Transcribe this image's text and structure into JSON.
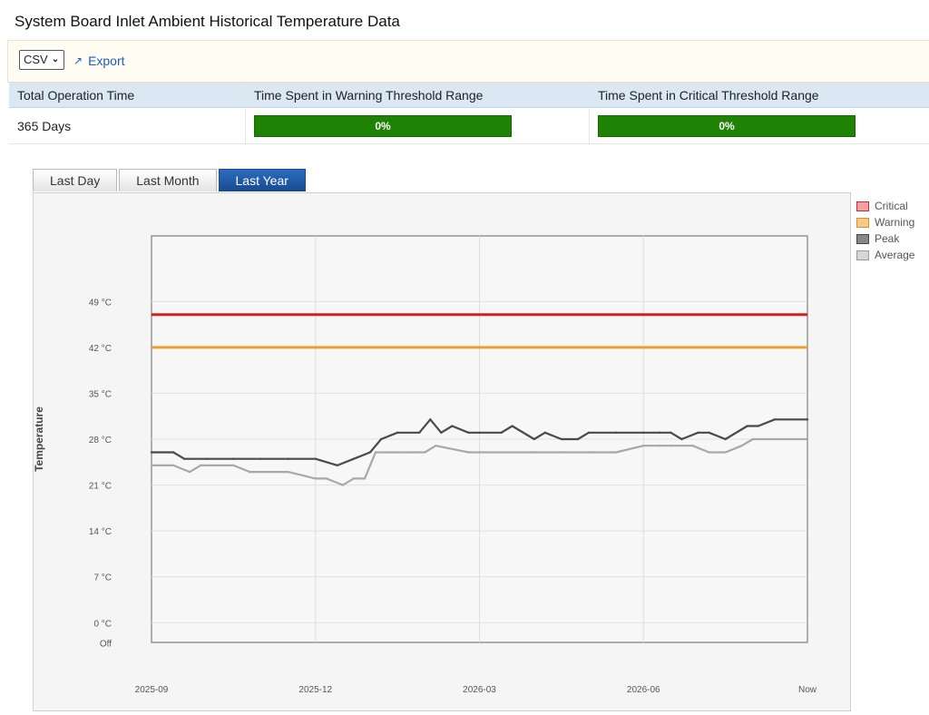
{
  "page_title": "System Board Inlet Ambient Historical Temperature Data",
  "toolbar": {
    "format_value": "CSV",
    "export_label": "Export"
  },
  "stats": {
    "headers": [
      "Total Operation Time",
      "Time Spent in Warning Threshold Range",
      "Time Spent in Critical Threshold Range"
    ],
    "operation_time": "365 Days",
    "warning_pct": "0%",
    "critical_pct": "0%"
  },
  "tabs": [
    {
      "label": "Last Day",
      "active": false
    },
    {
      "label": "Last Month",
      "active": false
    },
    {
      "label": "Last Year",
      "active": true
    }
  ],
  "legend": [
    {
      "label": "Critical",
      "color": "#f4a0a0"
    },
    {
      "label": "Warning",
      "color": "#f9c98a"
    },
    {
      "label": "Peak",
      "color": "#888888"
    },
    {
      "label": "Average",
      "color": "#d6d6d6"
    }
  ],
  "colors": {
    "critical": "#d02020",
    "warning": "#e8a030",
    "peak": "#4a4a4a",
    "average": "#a8a8a8",
    "bar_green": "#1e8204",
    "tab_active": "#1f59a8"
  },
  "chart_data": {
    "type": "line",
    "ylabel": "Temperature",
    "y_ticks": [
      "0 °C",
      "7 °C",
      "14 °C",
      "21 °C",
      "28 °C",
      "35 °C",
      "42 °C",
      "49 °C"
    ],
    "y_tick_values": [
      0,
      7,
      14,
      21,
      28,
      35,
      42,
      49
    ],
    "y_off_label": "Off",
    "ylim": [
      -3,
      59
    ],
    "x_tick_labels": [
      "2025-09",
      "2025-12",
      "2026-03",
      "2026-06",
      "Now"
    ],
    "xlim": [
      0,
      12
    ],
    "critical_threshold": 47,
    "warning_threshold": 42,
    "series": [
      {
        "name": "Peak",
        "x": [
          0,
          0.4,
          0.6,
          1.0,
          1.5,
          2.0,
          2.5,
          3.0,
          3.4,
          3.7,
          4.0,
          4.2,
          4.5,
          4.9,
          5.1,
          5.3,
          5.5,
          5.8,
          6.0,
          6.4,
          6.6,
          7.0,
          7.2,
          7.5,
          7.8,
          8.0,
          8.5,
          9.0,
          9.3,
          9.5,
          9.7,
          10.0,
          10.2,
          10.5,
          10.9,
          11.1,
          11.4,
          12.0
        ],
        "values": [
          26,
          26,
          25,
          25,
          25,
          25,
          25,
          25,
          24,
          25,
          26,
          28,
          29,
          29,
          31,
          29,
          30,
          29,
          29,
          29,
          30,
          28,
          29,
          28,
          28,
          29,
          29,
          29,
          29,
          29,
          28,
          29,
          29,
          28,
          30,
          30,
          31,
          31
        ]
      },
      {
        "name": "Average",
        "x": [
          0,
          0.4,
          0.7,
          0.9,
          1.5,
          1.8,
          2.5,
          3.0,
          3.2,
          3.5,
          3.7,
          3.9,
          4.1,
          4.4,
          4.8,
          5.0,
          5.2,
          5.8,
          6.0,
          7.0,
          7.5,
          8.0,
          8.5,
          9.0,
          9.3,
          9.5,
          9.9,
          10.2,
          10.5,
          10.8,
          11.0,
          12.0
        ],
        "values": [
          24,
          24,
          23,
          24,
          24,
          23,
          23,
          22,
          22,
          21,
          22,
          22,
          26,
          26,
          26,
          26,
          27,
          26,
          26,
          26,
          26,
          26,
          26,
          27,
          27,
          27,
          27,
          26,
          26,
          27,
          28,
          28
        ]
      }
    ]
  }
}
